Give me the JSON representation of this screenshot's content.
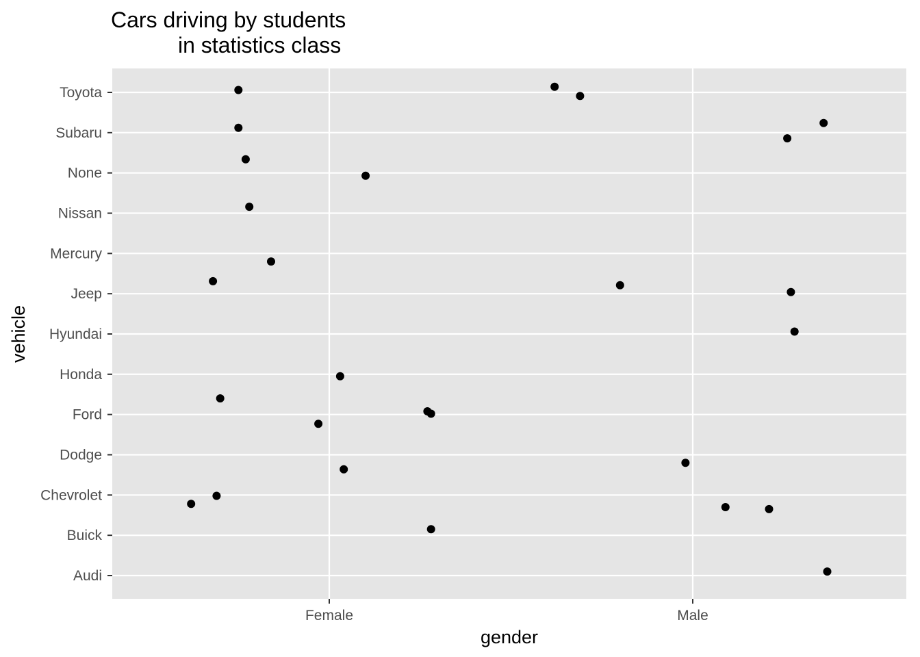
{
  "chart_data": {
    "type": "scatter",
    "title_lines": [
      "Cars driving by students",
      "in statistics class"
    ],
    "xlabel": "gender",
    "ylabel": "vehicle",
    "x_categories": [
      "Female",
      "Male"
    ],
    "y_categories": [
      "Audi",
      "Buick",
      "Chevrolet",
      "Dodge",
      "Ford",
      "Honda",
      "Hyundai",
      "Jeep",
      "Mercury",
      "Nissan",
      "None",
      "Subaru",
      "Toyota"
    ],
    "grid": true,
    "legend": "none",
    "colors": {
      "panel": "#e5e5e5",
      "grid": "#ffffff",
      "point": "#000000",
      "tick": "#333333",
      "tick_label": "#4d4d4d"
    },
    "points": [
      {
        "x": "Female",
        "x_jitter": -0.25,
        "y": "Toyota",
        "y_jitter": 0.06
      },
      {
        "x": "Male",
        "x_jitter": -0.38,
        "y": "Toyota",
        "y_jitter": 0.14
      },
      {
        "x": "Male",
        "x_jitter": -0.31,
        "y": "Toyota",
        "y_jitter": -0.09
      },
      {
        "x": "Female",
        "x_jitter": -0.25,
        "y": "Subaru",
        "y_jitter": 0.12
      },
      {
        "x": "Male",
        "x_jitter": 0.36,
        "y": "Subaru",
        "y_jitter": 0.24
      },
      {
        "x": "Male",
        "x_jitter": 0.26,
        "y": "Subaru",
        "y_jitter": -0.14
      },
      {
        "x": "Female",
        "x_jitter": -0.23,
        "y": "None",
        "y_jitter": 0.34
      },
      {
        "x": "Female",
        "x_jitter": 0.1,
        "y": "None",
        "y_jitter": -0.07
      },
      {
        "x": "Female",
        "x_jitter": -0.22,
        "y": "Nissan",
        "y_jitter": 0.16
      },
      {
        "x": "Female",
        "x_jitter": -0.16,
        "y": "Mercury",
        "y_jitter": -0.2
      },
      {
        "x": "Female",
        "x_jitter": -0.32,
        "y": "Jeep",
        "y_jitter": 0.31
      },
      {
        "x": "Male",
        "x_jitter": -0.2,
        "y": "Jeep",
        "y_jitter": 0.21
      },
      {
        "x": "Male",
        "x_jitter": 0.27,
        "y": "Jeep",
        "y_jitter": 0.04
      },
      {
        "x": "Male",
        "x_jitter": 0.28,
        "y": "Hyundai",
        "y_jitter": 0.06
      },
      {
        "x": "Female",
        "x_jitter": 0.03,
        "y": "Honda",
        "y_jitter": -0.05
      },
      {
        "x": "Female",
        "x_jitter": -0.3,
        "y": "Ford",
        "y_jitter": 0.4
      },
      {
        "x": "Female",
        "x_jitter": 0.27,
        "y": "Ford",
        "y_jitter": 0.08
      },
      {
        "x": "Female",
        "x_jitter": 0.28,
        "y": "Ford",
        "y_jitter": 0.02
      },
      {
        "x": "Female",
        "x_jitter": -0.03,
        "y": "Ford",
        "y_jitter": -0.23
      },
      {
        "x": "Female",
        "x_jitter": 0.04,
        "y": "Dodge",
        "y_jitter": -0.36
      },
      {
        "x": "Male",
        "x_jitter": -0.02,
        "y": "Dodge",
        "y_jitter": -0.2
      },
      {
        "x": "Female",
        "x_jitter": -0.31,
        "y": "Chevrolet",
        "y_jitter": -0.02
      },
      {
        "x": "Female",
        "x_jitter": -0.38,
        "y": "Chevrolet",
        "y_jitter": -0.22
      },
      {
        "x": "Male",
        "x_jitter": 0.09,
        "y": "Chevrolet",
        "y_jitter": -0.3
      },
      {
        "x": "Male",
        "x_jitter": 0.21,
        "y": "Chevrolet",
        "y_jitter": -0.35
      },
      {
        "x": "Female",
        "x_jitter": 0.28,
        "y": "Buick",
        "y_jitter": 0.15
      },
      {
        "x": "Male",
        "x_jitter": 0.37,
        "y": "Audi",
        "y_jitter": 0.1
      }
    ]
  }
}
